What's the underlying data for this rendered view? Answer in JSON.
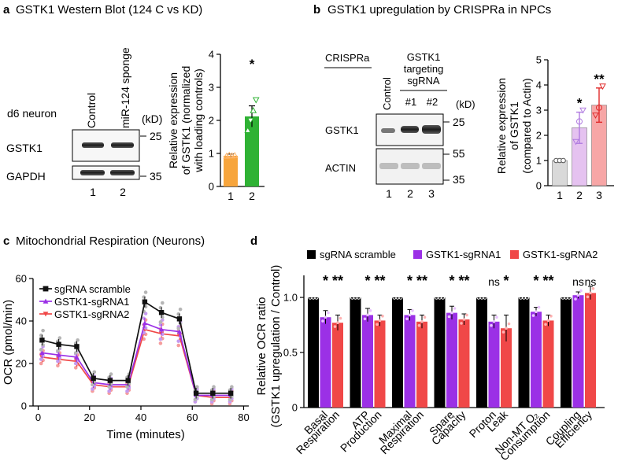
{
  "panel_a": {
    "letter": "a",
    "title": "GSTK1 Western Blot (124 C vs KD)",
    "cell_label": "d6 neuron",
    "lane_headers": [
      "Control",
      "miR-124 sponge"
    ],
    "kd_label": "(kD)",
    "rows": [
      {
        "label": "GSTK1",
        "marker": "25"
      },
      {
        "label": "GAPDH",
        "marker": "35"
      }
    ],
    "lane_numbers": [
      "1",
      "2"
    ]
  },
  "panel_b": {
    "letter": "b",
    "title": "GSTK1 upregulation by CRISPRa in NPCs",
    "crispra_label": "CRISPRa",
    "control_label": "Control",
    "targeting_lines": [
      "GSTK1",
      "targeting",
      "sgRNA"
    ],
    "sgrna_ids": [
      "#1",
      "#2"
    ],
    "kd_label": "(kD)",
    "rows": [
      {
        "label": "GSTK1",
        "marker": "25"
      },
      {
        "label": "ACTIN",
        "markers": [
          "55",
          "35"
        ]
      }
    ],
    "lane_numbers": [
      "1",
      "2",
      "3"
    ]
  },
  "panel_c": {
    "letter": "c"
  },
  "panel_d": {
    "letter": "d"
  },
  "chart_data": [
    {
      "id": "a_bar",
      "type": "bar",
      "categories": [
        "1",
        "2"
      ],
      "values": [
        0.93,
        2.12
      ],
      "errors": [
        0.05,
        0.32
      ],
      "points": [
        [
          0.92,
          0.95,
          0.93,
          0.94
        ],
        [
          1.7,
          2.0,
          2.3,
          2.62
        ]
      ],
      "colors": [
        "#f7a53c",
        "#2fb234"
      ],
      "significance": [
        "",
        "*"
      ],
      "ylabel_lines": [
        "Relative expression",
        "of GSTK1 (normalized",
        "with loading controls)"
      ],
      "ylim": [
        0,
        4
      ],
      "yticks": [
        0,
        1,
        2,
        3,
        4
      ]
    },
    {
      "id": "b_bar",
      "type": "bar",
      "categories": [
        "1",
        "2",
        "3"
      ],
      "values": [
        1.0,
        2.3,
        3.2
      ],
      "errors": [
        0.05,
        0.62,
        0.68
      ],
      "points": [
        [
          1.0,
          1.0,
          1.0
        ],
        [
          1.75,
          2.55,
          3.0
        ],
        [
          2.8,
          3.1,
          3.95
        ]
      ],
      "colors": [
        "#d9d9d9",
        "#e5c2f0",
        "#f7a6a6"
      ],
      "point_colors": [
        "#555555",
        "#b07be0",
        "#e02a2a"
      ],
      "significance": [
        "",
        "*",
        "**"
      ],
      "ylabel_lines": [
        "Relative expression",
        "of GSTK1",
        "(compared to Actin)"
      ],
      "ylim": [
        0,
        5
      ],
      "yticks": [
        0,
        1,
        2,
        3,
        4,
        5
      ]
    },
    {
      "id": "c_line",
      "type": "line",
      "title": "Mitochondrial Respiration (Neurons)",
      "xlabel": "Time (minutes)",
      "ylabel": "OCR (pmol/min)",
      "xlim": [
        -2,
        82
      ],
      "ylim": [
        0,
        60
      ],
      "xticks": [
        0,
        20,
        40,
        60,
        80
      ],
      "yticks": [
        0,
        20,
        40,
        60
      ],
      "x": [
        1.5,
        8,
        15,
        21.5,
        28,
        35,
        41.5,
        48,
        55,
        61.5,
        68,
        75
      ],
      "series": [
        {
          "name": "sgRNA scramble",
          "color": "#111111",
          "marker": "square",
          "values": [
            31,
            29,
            28,
            13,
            12,
            12,
            49,
            44,
            41,
            6,
            6,
            6
          ]
        },
        {
          "name": "GSTK1-sgRNA1",
          "color": "#9b30e6",
          "marker": "triangle",
          "values": [
            25,
            24,
            23,
            11,
            10,
            10,
            39,
            36,
            35,
            5,
            5,
            5
          ]
        },
        {
          "name": "GSTK1-sgRNA2",
          "color": "#f04848",
          "marker": "triangle-down",
          "values": [
            23,
            22,
            21,
            10,
            9,
            9,
            36,
            34,
            33,
            5,
            4,
            4
          ]
        }
      ]
    },
    {
      "id": "d_bar",
      "type": "bar",
      "ylabel_lines": [
        "Relative OCR ratio",
        "(GSTK1 upregulation / Control)"
      ],
      "ylim": [
        0,
        1.2
      ],
      "yticks": [
        0,
        0.5,
        1.0
      ],
      "ytick_labels": [
        "0",
        "0.5",
        "1.0"
      ],
      "categories": [
        [
          "Basal",
          "Respiration"
        ],
        [
          "ATP",
          "Production"
        ],
        [
          "Maximal",
          "Respiration"
        ],
        [
          "Spare",
          "Capacity"
        ],
        [
          "Proton",
          "Leak"
        ],
        [
          "Non-MT O₂",
          "Consumption"
        ],
        [
          "Coupling",
          "Efficiency"
        ]
      ],
      "series": [
        {
          "name": "sgRNA scramble",
          "color": "#000000",
          "values": [
            1.0,
            1.0,
            1.0,
            1.0,
            1.0,
            1.0,
            1.0
          ],
          "errors": [
            0,
            0,
            0,
            0,
            0,
            0,
            0
          ]
        },
        {
          "name": "GSTK1-sgRNA1",
          "color": "#9b30e6",
          "values": [
            0.82,
            0.84,
            0.84,
            0.86,
            0.78,
            0.87,
            1.02
          ],
          "errors": [
            0.06,
            0.06,
            0.05,
            0.06,
            0.06,
            0.04,
            0.03
          ]
        },
        {
          "name": "GSTK1-sgRNA2",
          "color": "#f04848",
          "values": [
            0.77,
            0.79,
            0.78,
            0.8,
            0.72,
            0.79,
            1.04
          ],
          "errors": [
            0.07,
            0.05,
            0.06,
            0.05,
            0.12,
            0.05,
            0.06
          ]
        }
      ],
      "significance": [
        [
          "*",
          "**"
        ],
        [
          "*",
          "**"
        ],
        [
          "*",
          "**"
        ],
        [
          "*",
          "**"
        ],
        [
          "ns",
          "*"
        ],
        [
          "*",
          "**"
        ],
        [
          "ns",
          "ns"
        ]
      ]
    }
  ]
}
